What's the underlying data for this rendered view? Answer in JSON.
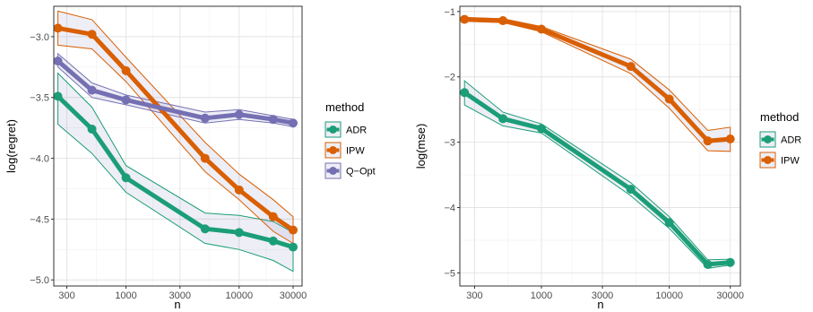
{
  "chart_data": [
    {
      "type": "line",
      "title": "",
      "xlabel": "n",
      "ylabel": "log(regret)",
      "x_scale": "log10",
      "xlim": [
        230,
        36000
      ],
      "ylim": [
        -5.05,
        -2.75
      ],
      "x_ticks": [
        300,
        1000,
        3000,
        10000,
        30000
      ],
      "x_tick_labels": [
        "300",
        "1000",
        "3000",
        "10000",
        "30000"
      ],
      "y_ticks": [
        -5.0,
        -4.5,
        -4.0,
        -3.5,
        -3.0
      ],
      "y_tick_labels": [
        "−5.0",
        "−4.5",
        "−4.0",
        "−3.5",
        "−3.0"
      ],
      "grid": true,
      "legend": {
        "title": "method",
        "position": "right"
      },
      "x": [
        250,
        500,
        1000,
        5000,
        10000,
        20000,
        30000
      ],
      "series": [
        {
          "name": "ADR",
          "color": "#1b9e77",
          "values": [
            -3.49,
            -3.76,
            -4.16,
            -4.58,
            -4.61,
            -4.68,
            -4.73
          ],
          "lower": [
            -3.72,
            -3.96,
            -4.28,
            -4.7,
            -4.75,
            -4.84,
            -4.93
          ],
          "upper": [
            -3.3,
            -3.58,
            -4.06,
            -4.45,
            -4.47,
            -4.52,
            -4.61
          ]
        },
        {
          "name": "IPW",
          "color": "#d95f02",
          "values": [
            -2.93,
            -2.98,
            -3.28,
            -4.0,
            -4.26,
            -4.48,
            -4.59
          ],
          "lower": [
            -3.07,
            -3.1,
            -3.37,
            -4.11,
            -4.34,
            -4.6,
            -4.7
          ],
          "upper": [
            -2.79,
            -2.86,
            -3.17,
            -3.87,
            -4.13,
            -4.34,
            -4.48
          ]
        },
        {
          "name": "Q−Opt",
          "color": "#7570b3",
          "values": [
            -3.2,
            -3.44,
            -3.52,
            -3.67,
            -3.64,
            -3.68,
            -3.71
          ],
          "lower": [
            -3.25,
            -3.5,
            -3.56,
            -3.71,
            -3.68,
            -3.71,
            -3.74
          ],
          "upper": [
            -3.14,
            -3.38,
            -3.48,
            -3.62,
            -3.6,
            -3.65,
            -3.68
          ]
        }
      ]
    },
    {
      "type": "line",
      "title": "",
      "xlabel": "n",
      "ylabel": "log(mse)",
      "x_scale": "log10",
      "xlim": [
        230,
        36000
      ],
      "ylim": [
        -5.2,
        -0.92
      ],
      "x_ticks": [
        300,
        1000,
        3000,
        10000,
        30000
      ],
      "x_tick_labels": [
        "300",
        "1000",
        "3000",
        "10000",
        "30000"
      ],
      "y_ticks": [
        -5,
        -4,
        -3,
        -2,
        -1
      ],
      "y_tick_labels": [
        "−5",
        "−4",
        "−3",
        "−2",
        "−1"
      ],
      "grid": true,
      "legend": {
        "title": "method",
        "position": "right"
      },
      "x": [
        250,
        500,
        1000,
        5000,
        10000,
        20000,
        30000
      ],
      "series": [
        {
          "name": "ADR",
          "color": "#1b9e77",
          "values": [
            -2.24,
            -2.64,
            -2.79,
            -3.72,
            -4.23,
            -4.87,
            -4.84
          ],
          "lower": [
            -2.43,
            -2.75,
            -2.86,
            -3.82,
            -4.32,
            -4.93,
            -4.88
          ],
          "upper": [
            -2.06,
            -2.54,
            -2.72,
            -3.62,
            -4.14,
            -4.8,
            -4.79
          ]
        },
        {
          "name": "IPW",
          "color": "#d95f02",
          "values": [
            -1.12,
            -1.14,
            -1.27,
            -1.84,
            -2.34,
            -2.98,
            -2.95
          ],
          "lower": [
            -1.15,
            -1.17,
            -1.31,
            -1.95,
            -2.48,
            -3.13,
            -3.14
          ],
          "upper": [
            -1.09,
            -1.11,
            -1.23,
            -1.73,
            -2.2,
            -2.82,
            -2.77
          ]
        }
      ]
    }
  ]
}
